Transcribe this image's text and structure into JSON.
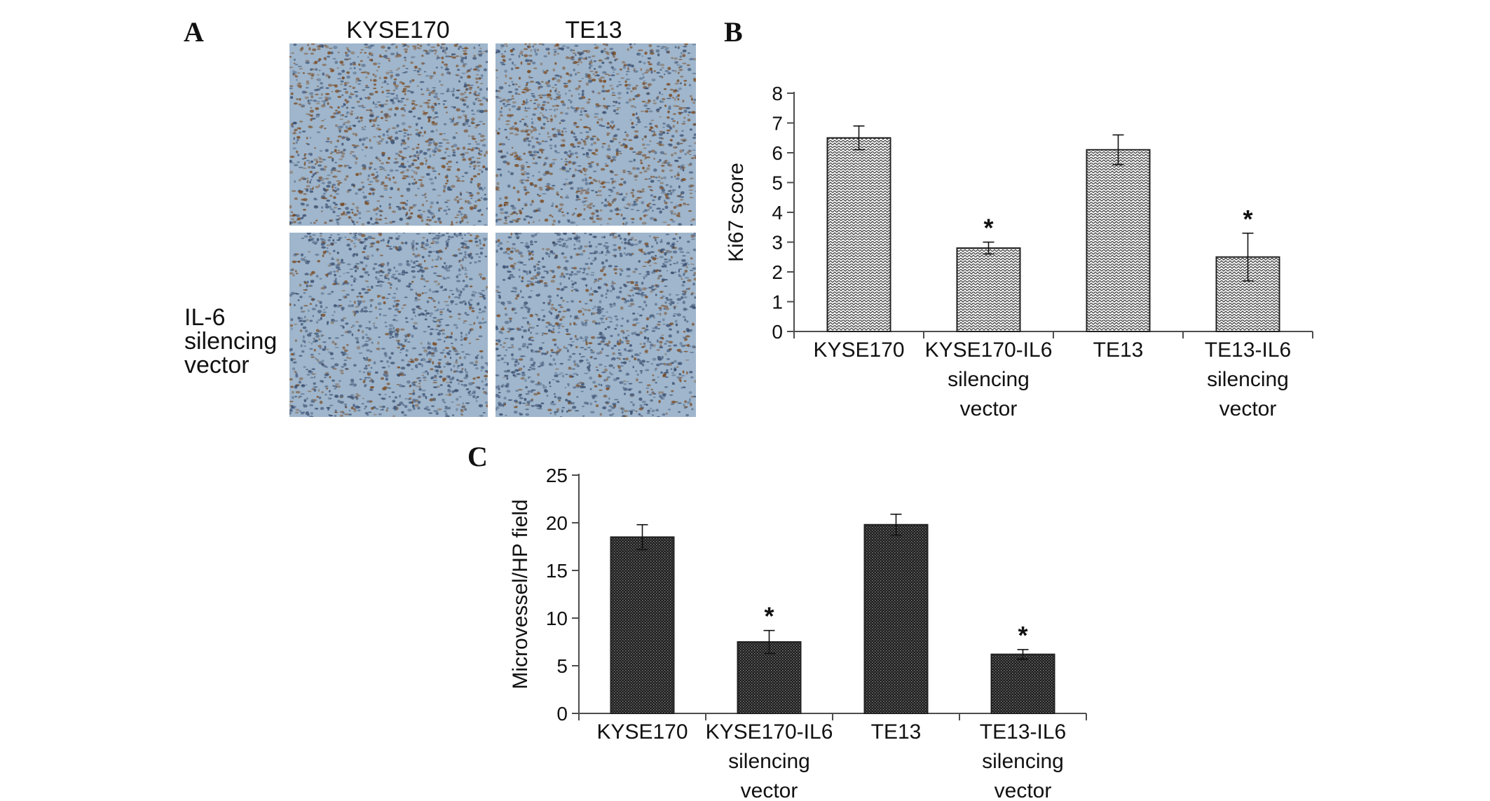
{
  "panels": {
    "a": {
      "letter": "A",
      "col_labels": [
        "KYSE170",
        "TE13"
      ],
      "row_label_lines": [
        "IL-6",
        "silencing",
        "vector"
      ]
    },
    "b": {
      "letter": "B"
    },
    "c": {
      "letter": "C"
    }
  },
  "colors": {
    "axis": "#4d4d4d",
    "bar_outline": "#222222",
    "stain_background": "#9fb6cc",
    "stain_brown": "#7a4a22",
    "nuclei_blue": "#3b4f70"
  },
  "chart_data": [
    {
      "id": "B",
      "type": "bar",
      "fill_pattern": "light zigzag hatch",
      "ylabel": "Ki67 score",
      "xlabel": "",
      "ylim": [
        0,
        8
      ],
      "yticks": [
        0,
        1,
        2,
        3,
        4,
        5,
        6,
        7,
        8
      ],
      "categories": [
        [
          "KYSE170"
        ],
        [
          "KYSE170-IL6",
          "silencing",
          "vector"
        ],
        [
          "TE13"
        ],
        [
          "TE13-IL6",
          "silencing",
          "vector"
        ]
      ],
      "values": [
        6.5,
        2.8,
        6.1,
        2.5
      ],
      "errors": [
        0.4,
        0.2,
        0.5,
        0.8
      ],
      "significance": [
        "",
        "*",
        "",
        "*"
      ],
      "grid": false
    },
    {
      "id": "C",
      "type": "bar",
      "fill_pattern": "dark dotted fill",
      "ylabel": "Microvessel/HP field",
      "xlabel": "",
      "ylim": [
        0,
        25
      ],
      "yticks": [
        0,
        5,
        10,
        15,
        20,
        25
      ],
      "categories": [
        [
          "KYSE170"
        ],
        [
          "KYSE170-IL6",
          "silencing",
          "vector"
        ],
        [
          "TE13"
        ],
        [
          "TE13-IL6",
          "silencing",
          "vector"
        ]
      ],
      "values": [
        18.5,
        7.5,
        19.8,
        6.2
      ],
      "errors": [
        1.3,
        1.2,
        1.1,
        0.5
      ],
      "significance": [
        "",
        "*",
        "",
        "*"
      ],
      "grid": false
    }
  ]
}
